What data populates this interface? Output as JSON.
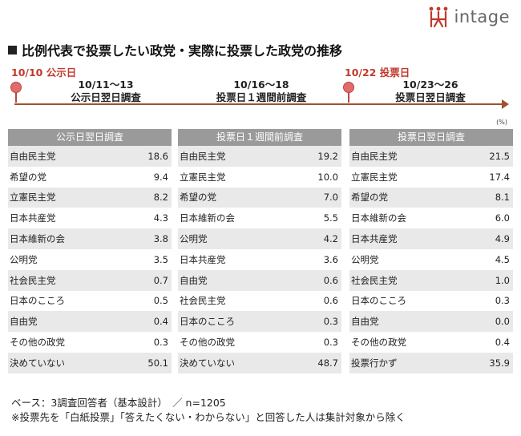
{
  "brand": {
    "name": "intage",
    "accent": "#c0392b"
  },
  "title": "比例代表で投票したい政党・実際に投票した政党の推移",
  "timeline": {
    "events": [
      {
        "label": "10/10  公示日"
      },
      {
        "label": "10/22  投票日"
      }
    ],
    "periods": [
      {
        "dates": "10/11〜13",
        "label": "公示日翌日調査"
      },
      {
        "dates": "10/16〜18",
        "label": "投票日１週間前調査"
      },
      {
        "dates": "10/23〜26",
        "label": "投票日翌日調査"
      }
    ],
    "unit": "(%)"
  },
  "tables": [
    {
      "header": "公示日翌日調査",
      "rows": [
        {
          "party": "自由民主党",
          "value": "18.6"
        },
        {
          "party": "希望の党",
          "value": "9.4"
        },
        {
          "party": "立憲民主党",
          "value": "8.2"
        },
        {
          "party": "日本共産党",
          "value": "4.3"
        },
        {
          "party": "日本維新の会",
          "value": "3.8"
        },
        {
          "party": "公明党",
          "value": "3.5"
        },
        {
          "party": "社会民主党",
          "value": "0.7"
        },
        {
          "party": "日本のこころ",
          "value": "0.5"
        },
        {
          "party": "自由党",
          "value": "0.4"
        },
        {
          "party": "その他の政党",
          "value": "0.3"
        },
        {
          "party": "決めていない",
          "value": "50.1"
        }
      ]
    },
    {
      "header": "投票日１週間前調査",
      "rows": [
        {
          "party": "自由民主党",
          "value": "19.2"
        },
        {
          "party": "立憲民主党",
          "value": "10.0"
        },
        {
          "party": "希望の党",
          "value": "7.0"
        },
        {
          "party": "日本維新の会",
          "value": "5.5"
        },
        {
          "party": "公明党",
          "value": "4.2"
        },
        {
          "party": "日本共産党",
          "value": "3.6"
        },
        {
          "party": "自由党",
          "value": "0.6"
        },
        {
          "party": "社会民主党",
          "value": "0.6"
        },
        {
          "party": "日本のこころ",
          "value": "0.3"
        },
        {
          "party": "その他の政党",
          "value": "0.3"
        },
        {
          "party": "決めていない",
          "value": "48.7"
        }
      ]
    },
    {
      "header": "投票日翌日調査",
      "rows": [
        {
          "party": "自由民主党",
          "value": "21.5"
        },
        {
          "party": "立憲民主党",
          "value": "17.4"
        },
        {
          "party": "希望の党",
          "value": "8.1"
        },
        {
          "party": "日本維新の会",
          "value": "6.0"
        },
        {
          "party": "日本共産党",
          "value": "4.9"
        },
        {
          "party": "公明党",
          "value": "4.5"
        },
        {
          "party": "社会民主党",
          "value": "1.0"
        },
        {
          "party": "日本のこころ",
          "value": "0.3"
        },
        {
          "party": "自由党",
          "value": "0.0"
        },
        {
          "party": "その他の政党",
          "value": "0.4"
        },
        {
          "party": "投票行かず",
          "value": "35.9"
        }
      ]
    }
  ],
  "notes": {
    "base": "ベース：3調査回答者（基本設計）　／ n=1205",
    "footnote": "※投票先を「白紙投票」「答えたくない・わからない」と回答した人は集計対象から除く"
  }
}
